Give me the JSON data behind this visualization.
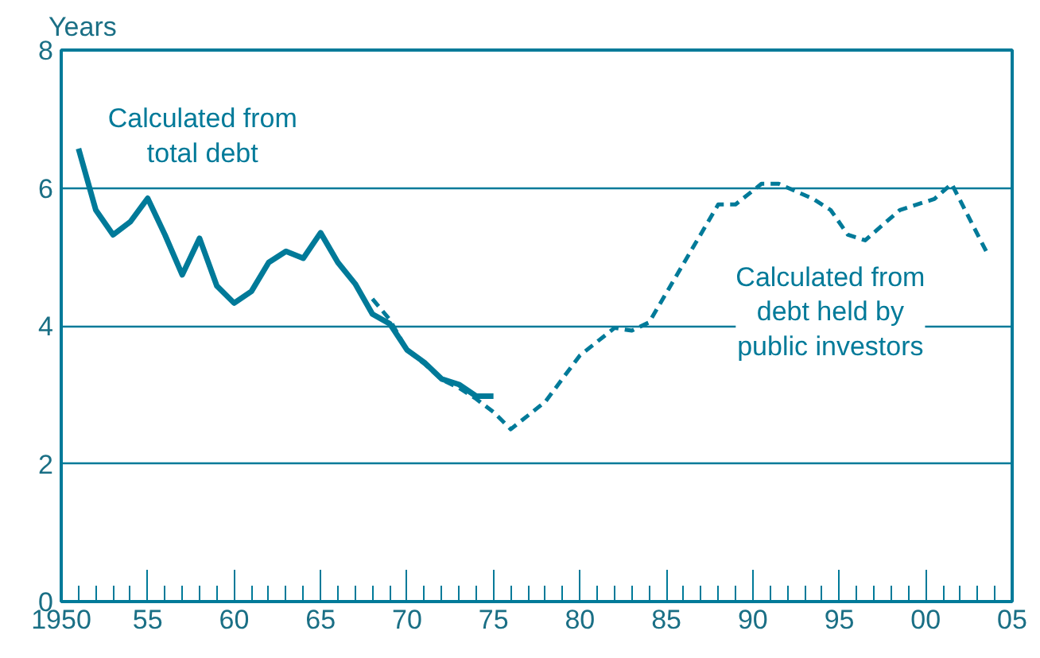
{
  "chart_data": {
    "type": "line",
    "ylabel": "Years",
    "xlim": [
      1950,
      2005
    ],
    "xticks": [
      {
        "value": 1950,
        "label": "1950"
      },
      {
        "value": 1955,
        "label": "55"
      },
      {
        "value": 1960,
        "label": "60"
      },
      {
        "value": 1965,
        "label": "65"
      },
      {
        "value": 1970,
        "label": "70"
      },
      {
        "value": 1975,
        "label": "75"
      },
      {
        "value": 1980,
        "label": "80"
      },
      {
        "value": 1985,
        "label": "85"
      },
      {
        "value": 1990,
        "label": "90"
      },
      {
        "value": 1995,
        "label": "95"
      },
      {
        "value": 2000,
        "label": "00"
      },
      {
        "value": 2005,
        "label": "05"
      }
    ],
    "ylim": [
      0,
      8
    ],
    "yticks": [
      0,
      2,
      4,
      6,
      8
    ],
    "grid": "y",
    "series": [
      {
        "name": "Calculated from\ntotal debt",
        "color": "#007a99",
        "line_style": "solid",
        "x": [
          1951,
          1952,
          1953,
          1954,
          1955,
          1956,
          1957,
          1958,
          1959,
          1960,
          1961,
          1962,
          1963,
          1964,
          1965,
          1966,
          1967,
          1968,
          1969,
          1970,
          1971,
          1972,
          1973,
          1974,
          1975
        ],
        "values": [
          6.57,
          5.68,
          5.32,
          5.51,
          5.85,
          5.32,
          4.74,
          5.27,
          4.58,
          4.33,
          4.5,
          4.92,
          5.08,
          4.98,
          5.35,
          4.92,
          4.61,
          4.17,
          4.03,
          3.65,
          3.47,
          3.23,
          3.15,
          2.98,
          2.98
        ]
      },
      {
        "name": "Calculated from\ndebt held by\npublic investors",
        "color": "#007a99",
        "line_style": "dashed",
        "x": [
          1968,
          1969,
          1970,
          1971,
          1972,
          1973,
          1974,
          1975,
          1976,
          1978,
          1980,
          1982,
          1983,
          1984,
          1986.5,
          1988,
          1989,
          1990.5,
          1991.5,
          1993.5,
          1994.5,
          1995.5,
          1996.5,
          1998.5,
          2000.5,
          2001.5,
          2003.5
        ],
        "values": [
          4.39,
          4.09,
          3.65,
          3.45,
          3.22,
          3.1,
          2.94,
          2.75,
          2.5,
          2.9,
          3.57,
          3.97,
          3.93,
          4.05,
          5.12,
          5.76,
          5.76,
          6.06,
          6.06,
          5.84,
          5.68,
          5.32,
          5.24,
          5.68,
          5.84,
          6.06,
          5.08
        ]
      }
    ]
  }
}
